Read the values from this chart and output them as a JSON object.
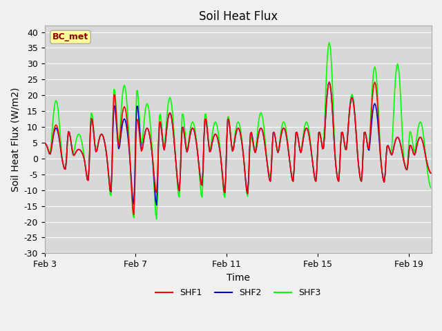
{
  "title": "Soil Heat Flux",
  "ylabel": "Soil Heat Flux (W/m2)",
  "xlabel": "Time",
  "annotation": "BC_met",
  "ylim": [
    -30,
    42
  ],
  "yticks": [
    -30,
    -25,
    -20,
    -15,
    -10,
    -5,
    0,
    5,
    10,
    15,
    20,
    25,
    30,
    35,
    40
  ],
  "xtick_labels": [
    "Feb 3",
    "Feb 7",
    "Feb 11",
    "Feb 15",
    "Feb 19"
  ],
  "xtick_positions": [
    0,
    96,
    192,
    288,
    384
  ],
  "colors": {
    "SHF1": "#ff0000",
    "SHF2": "#0000cc",
    "SHF3": "#00ff00"
  },
  "bg_color": "#e8e8e8",
  "plot_bg_color": "#d8d8d8",
  "title_fontsize": 12,
  "label_fontsize": 10,
  "tick_fontsize": 9
}
